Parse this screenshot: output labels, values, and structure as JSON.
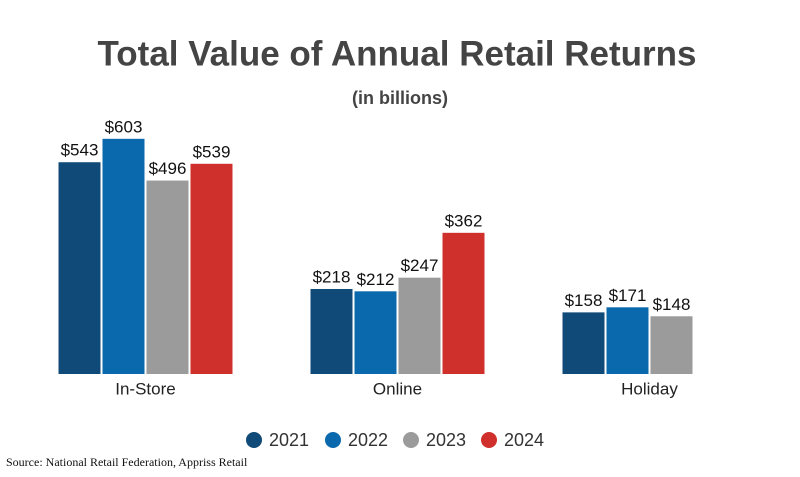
{
  "chart_data": {
    "type": "bar",
    "title": "Total Value of Annual Retail Returns",
    "subtitle": "(in billions)",
    "categories": [
      "In-Store",
      "Online",
      "Holiday"
    ],
    "series": [
      {
        "name": "2021",
        "color": "#0f4a78",
        "values": [
          543,
          218,
          158
        ],
        "value_labels": [
          "$543",
          "$218",
          "$158"
        ]
      },
      {
        "name": "2022",
        "color": "#0a68ad",
        "values": [
          603,
          212,
          171
        ],
        "value_labels": [
          "$603",
          "$212",
          "$171"
        ]
      },
      {
        "name": "2023",
        "color": "#9b9b9b",
        "values": [
          496,
          247,
          148
        ],
        "value_labels": [
          "$496",
          "$247",
          "$148"
        ]
      },
      {
        "name": "2024",
        "color": "#d0302b",
        "values": [
          539,
          362,
          null
        ],
        "value_labels": [
          "$539",
          "$362",
          null
        ]
      }
    ],
    "legend": "bottom",
    "source": "Source: National Retail Federation, Appriss Retail"
  }
}
